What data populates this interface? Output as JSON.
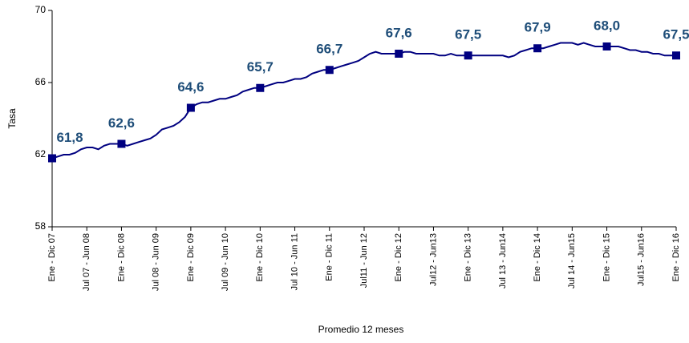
{
  "chart_data": {
    "type": "line",
    "y_label": "Tasa",
    "x_label": "Promedio 12 meses",
    "categories": [
      "Ene - Dic 07",
      null,
      null,
      null,
      null,
      null,
      "Jul 07 - Jun 08",
      null,
      null,
      null,
      null,
      null,
      "Ene - Dic 08",
      null,
      null,
      null,
      null,
      null,
      "Jul 08 - Jun 09",
      null,
      null,
      null,
      null,
      null,
      "Ene - Dic 09",
      null,
      null,
      null,
      null,
      null,
      "Jul 09 - Jun 10",
      null,
      null,
      null,
      null,
      null,
      "Ene - Dic 10",
      null,
      null,
      null,
      null,
      null,
      "Jul 10 - Jun 11",
      null,
      null,
      null,
      null,
      null,
      "Ene - Dic 11",
      null,
      null,
      null,
      null,
      null,
      "Jul11 - Jun 12",
      null,
      null,
      null,
      null,
      null,
      "Ene - Dic 12",
      null,
      null,
      null,
      null,
      null,
      "Jul12 - Jun13",
      null,
      null,
      null,
      null,
      null,
      "Ene - Dic 13",
      null,
      null,
      null,
      null,
      null,
      "Jul 13 - Jun14",
      null,
      null,
      null,
      null,
      null,
      "Ene - Dic 14",
      null,
      null,
      null,
      null,
      null,
      "Jul 14 - Jun15",
      null,
      null,
      null,
      null,
      null,
      "Ene - Dic 15",
      null,
      null,
      null,
      null,
      null,
      "Jul15 - Jun16",
      null,
      null,
      null,
      null,
      null,
      "Ene - Dic 16"
    ],
    "values": [
      61.8,
      61.9,
      62.0,
      62.0,
      62.1,
      62.3,
      62.4,
      62.4,
      62.3,
      62.5,
      62.6,
      62.6,
      62.6,
      62.5,
      62.6,
      62.7,
      62.8,
      62.9,
      63.1,
      63.4,
      63.5,
      63.6,
      63.8,
      64.1,
      64.6,
      64.8,
      64.9,
      64.9,
      65.0,
      65.1,
      65.1,
      65.2,
      65.3,
      65.5,
      65.6,
      65.7,
      65.7,
      65.8,
      65.9,
      66.0,
      66.0,
      66.1,
      66.2,
      66.2,
      66.3,
      66.5,
      66.6,
      66.7,
      66.7,
      66.8,
      66.9,
      67.0,
      67.1,
      67.2,
      67.4,
      67.6,
      67.7,
      67.6,
      67.6,
      67.6,
      67.6,
      67.7,
      67.7,
      67.6,
      67.6,
      67.6,
      67.6,
      67.5,
      67.5,
      67.6,
      67.5,
      67.5,
      67.5,
      67.5,
      67.5,
      67.5,
      67.5,
      67.5,
      67.5,
      67.4,
      67.5,
      67.7,
      67.8,
      67.9,
      67.9,
      67.9,
      68.0,
      68.1,
      68.2,
      68.2,
      68.2,
      68.1,
      68.2,
      68.1,
      68.0,
      68.0,
      68.0,
      68.0,
      68.0,
      67.9,
      67.8,
      67.8,
      67.7,
      67.7,
      67.6,
      67.6,
      67.5,
      67.5,
      67.5
    ],
    "value_labels": [
      "61,8",
      null,
      null,
      null,
      null,
      null,
      null,
      null,
      null,
      null,
      null,
      null,
      "62,6",
      null,
      null,
      null,
      null,
      null,
      null,
      null,
      null,
      null,
      null,
      null,
      "64,6",
      null,
      null,
      null,
      null,
      null,
      null,
      null,
      null,
      null,
      null,
      null,
      "65,7",
      null,
      null,
      null,
      null,
      null,
      null,
      null,
      null,
      null,
      null,
      null,
      "66,7",
      null,
      null,
      null,
      null,
      null,
      null,
      null,
      null,
      null,
      null,
      null,
      "67,6",
      null,
      null,
      null,
      null,
      null,
      null,
      null,
      null,
      null,
      null,
      null,
      "67,5",
      null,
      null,
      null,
      null,
      null,
      null,
      null,
      null,
      null,
      null,
      null,
      "67,9",
      null,
      null,
      null,
      null,
      null,
      null,
      null,
      null,
      null,
      null,
      null,
      "68,0",
      null,
      null,
      null,
      null,
      null,
      null,
      null,
      null,
      null,
      null,
      null,
      "67,5"
    ],
    "color": "#000080",
    "label_color": "#1f4e79",
    "ylim": [
      58,
      70
    ],
    "yticks": [
      58,
      62,
      66,
      70
    ]
  }
}
